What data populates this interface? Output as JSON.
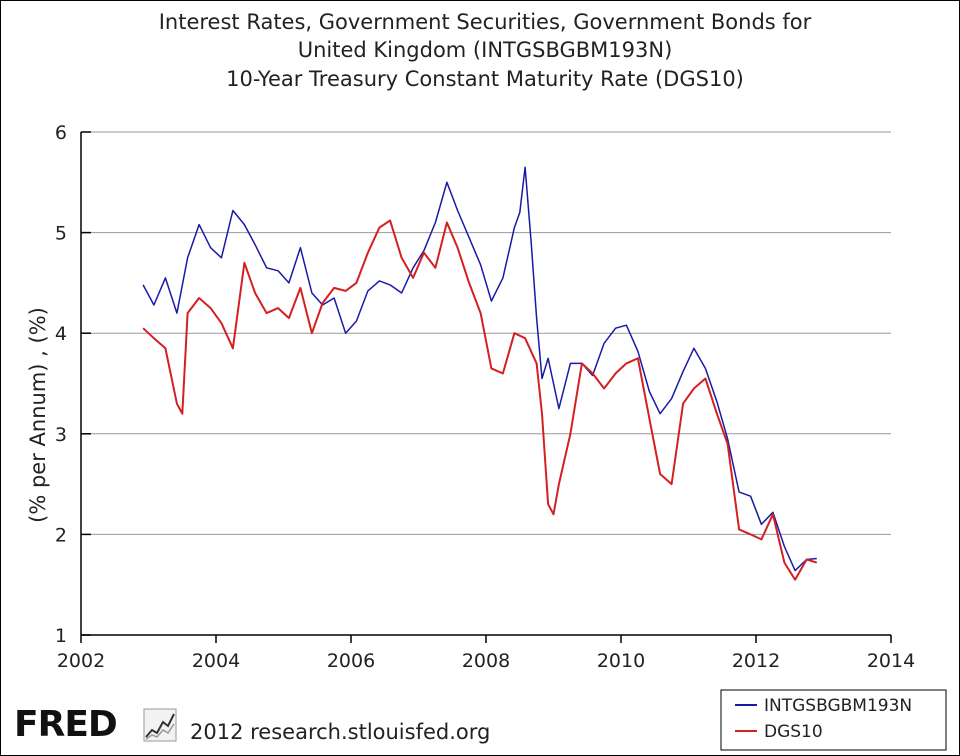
{
  "chart_data": {
    "type": "line",
    "title": [
      "Interest Rates, Government Securities, Government Bonds for",
      "United Kingdom (INTGSBGBM193N)",
      "10-Year Treasury Constant Maturity Rate (DGS10)"
    ],
    "xlabel": "",
    "ylabel": "(% per Annum) , (%)",
    "xlim": [
      2002,
      2014
    ],
    "ylim": [
      1,
      6
    ],
    "x_ticks": [
      "2002",
      "2004",
      "2006",
      "2008",
      "2010",
      "2012",
      "2014"
    ],
    "y_ticks": [
      "1",
      "2",
      "3",
      "4",
      "5",
      "6"
    ],
    "grid": "horizontal",
    "legend_position": "bottom-right",
    "series": [
      {
        "name": "INTGSBGBM193N",
        "color": "#1a1aa6",
        "x": [
          2002.92,
          2003.08,
          2003.25,
          2003.42,
          2003.58,
          2003.75,
          2003.92,
          2004.08,
          2004.25,
          2004.42,
          2004.58,
          2004.75,
          2004.92,
          2005.08,
          2005.25,
          2005.42,
          2005.58,
          2005.75,
          2005.92,
          2006.08,
          2006.25,
          2006.42,
          2006.58,
          2006.75,
          2006.92,
          2007.08,
          2007.25,
          2007.42,
          2007.58,
          2007.75,
          2007.92,
          2008.08,
          2008.25,
          2008.42,
          2008.5,
          2008.58,
          2008.67,
          2008.75,
          2008.83,
          2008.92,
          2009.08,
          2009.25,
          2009.42,
          2009.58,
          2009.75,
          2009.92,
          2010.08,
          2010.25,
          2010.42,
          2010.58,
          2010.75,
          2010.92,
          2011.08,
          2011.25,
          2011.42,
          2011.58,
          2011.75,
          2011.92,
          2012.08,
          2012.25,
          2012.42,
          2012.58,
          2012.75,
          2012.9
        ],
        "y": [
          4.48,
          4.28,
          4.55,
          4.2,
          4.75,
          5.08,
          4.85,
          4.75,
          5.22,
          5.08,
          4.88,
          4.65,
          4.62,
          4.5,
          4.85,
          4.4,
          4.28,
          4.35,
          4.0,
          4.12,
          4.42,
          4.52,
          4.48,
          4.4,
          4.65,
          4.82,
          5.1,
          5.5,
          5.22,
          4.95,
          4.68,
          4.32,
          4.55,
          5.05,
          5.2,
          5.65,
          4.9,
          4.15,
          3.55,
          3.75,
          3.25,
          3.7,
          3.7,
          3.58,
          3.9,
          4.05,
          4.08,
          3.82,
          3.42,
          3.2,
          3.35,
          3.62,
          3.85,
          3.65,
          3.32,
          2.95,
          2.42,
          2.38,
          2.1,
          2.22,
          1.88,
          1.64,
          1.75,
          1.76
        ]
      },
      {
        "name": "DGS10",
        "color": "#d42020",
        "x": [
          2002.92,
          2003.08,
          2003.25,
          2003.42,
          2003.5,
          2003.58,
          2003.75,
          2003.92,
          2004.08,
          2004.25,
          2004.42,
          2004.58,
          2004.75,
          2004.92,
          2005.08,
          2005.25,
          2005.42,
          2005.58,
          2005.75,
          2005.92,
          2006.08,
          2006.25,
          2006.42,
          2006.58,
          2006.75,
          2006.92,
          2007.08,
          2007.25,
          2007.42,
          2007.58,
          2007.75,
          2007.92,
          2008.08,
          2008.25,
          2008.42,
          2008.58,
          2008.75,
          2008.83,
          2008.92,
          2009.0,
          2009.08,
          2009.25,
          2009.42,
          2009.58,
          2009.75,
          2009.92,
          2010.08,
          2010.25,
          2010.42,
          2010.58,
          2010.75,
          2010.92,
          2011.08,
          2011.25,
          2011.42,
          2011.58,
          2011.75,
          2011.92,
          2012.08,
          2012.25,
          2012.42,
          2012.58,
          2012.75,
          2012.9
        ],
        "y": [
          4.05,
          3.95,
          3.85,
          3.3,
          3.2,
          4.2,
          4.35,
          4.25,
          4.1,
          3.85,
          4.7,
          4.4,
          4.2,
          4.25,
          4.15,
          4.45,
          4.0,
          4.3,
          4.45,
          4.42,
          4.5,
          4.8,
          5.05,
          5.12,
          4.75,
          4.55,
          4.8,
          4.65,
          5.1,
          4.85,
          4.5,
          4.2,
          3.65,
          3.6,
          4.0,
          3.95,
          3.7,
          3.2,
          2.3,
          2.2,
          2.5,
          3.0,
          3.7,
          3.6,
          3.45,
          3.6,
          3.7,
          3.75,
          3.15,
          2.6,
          2.5,
          3.3,
          3.45,
          3.55,
          3.2,
          2.9,
          2.05,
          2.0,
          1.95,
          2.2,
          1.72,
          1.55,
          1.75,
          1.72
        ]
      }
    ]
  },
  "footer": {
    "logo": "FRED",
    "logo_icon": "line-chart-icon",
    "credit": "2012 research.stlouisfed.org"
  }
}
